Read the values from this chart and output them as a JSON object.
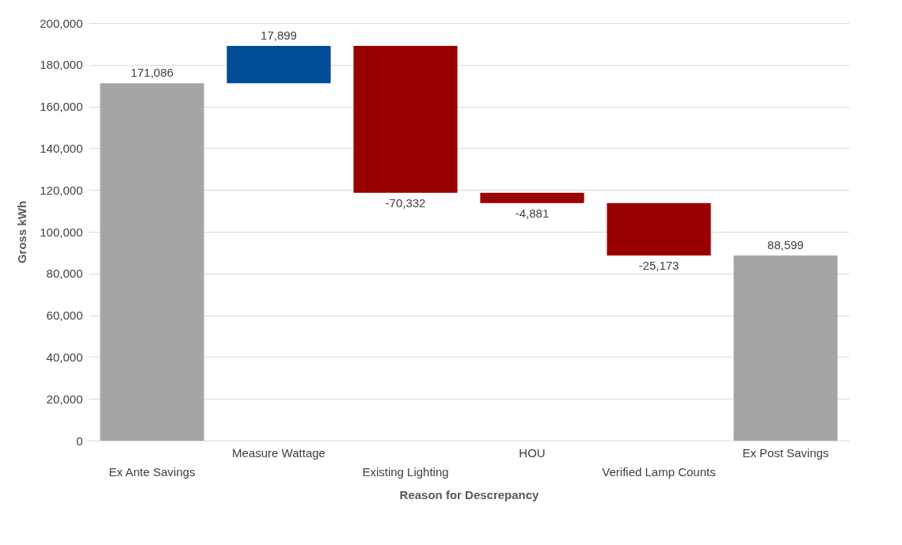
{
  "chart_data": {
    "type": "bar",
    "xlabel": "Reason for Descrepancy",
    "ylabel": "Gross kWh",
    "categories": [
      "Ex Ante Savings",
      "Measure Wattage",
      "Existing Lighting",
      "HOU",
      "Verified Lamp Counts",
      "Ex Post Savings"
    ],
    "values": [
      171086,
      17899,
      -70332,
      -4881,
      -25173,
      88599
    ],
    "value_labels": [
      "171,086",
      "17,899",
      "-70,332",
      "-4,881",
      "-25,173",
      "88,599"
    ],
    "base": [
      0,
      171086,
      188985,
      118653,
      113772,
      0
    ],
    "colors": [
      "#a5a5a5",
      "#004c97",
      "#990000",
      "#990000",
      "#990000",
      "#a5a5a5"
    ],
    "ylim": [
      0,
      200000
    ],
    "yticks": [
      0,
      {
        "value": 20000,
        "label": "20,000"
      },
      {
        "value": 40000,
        "label": "40,000"
      },
      {
        "value": 60000,
        "label": "60,000"
      },
      {
        "value": 80000,
        "label": "80,000"
      },
      {
        "value": 100000,
        "label": "100,000"
      },
      {
        "value": 120000,
        "label": "120,000"
      },
      {
        "value": 140000,
        "label": "140,000"
      },
      {
        "value": 160000,
        "label": "160,000"
      },
      {
        "value": 180000,
        "label": "180,000"
      },
      {
        "value": 200000,
        "label": "200,000"
      }
    ],
    "grid": "y"
  }
}
